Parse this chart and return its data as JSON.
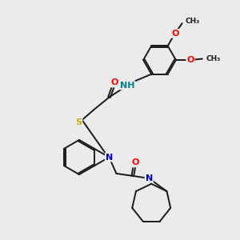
{
  "background_color": "#ebebeb",
  "bond_color": "#1a1a1a",
  "atom_colors": {
    "O": "#ff0000",
    "N": "#0000cd",
    "S": "#ccaa00",
    "NH": "#008080",
    "C": "#1a1a1a"
  },
  "font_size": 8.0,
  "linewidth": 1.4
}
